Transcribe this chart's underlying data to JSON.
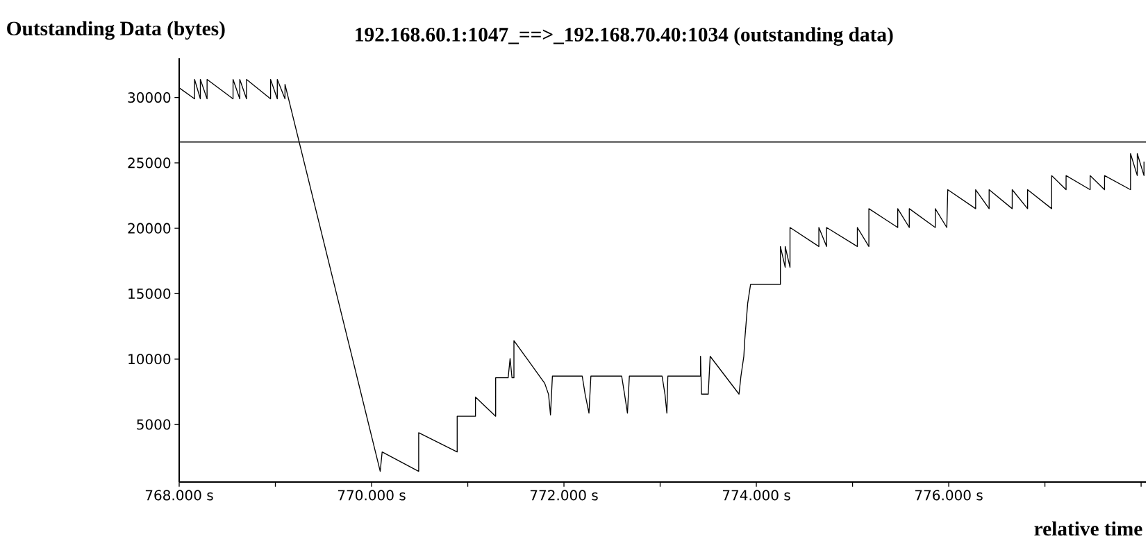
{
  "chart_data": {
    "type": "line",
    "title": "192.168.60.1:1047_==>_192.168.70.40:1034 (outstanding data)",
    "ylabel": "Outstanding Data (bytes)",
    "xlabel": "relative time",
    "xlim": [
      768,
      778.05
    ],
    "ylim": [
      600,
      33000
    ],
    "xticks": [
      {
        "value": 768,
        "label": "768.000 s"
      },
      {
        "value": 769,
        "label": null
      },
      {
        "value": 770,
        "label": "770.000 s"
      },
      {
        "value": 771,
        "label": null
      },
      {
        "value": 772,
        "label": "772.000 s"
      },
      {
        "value": 773,
        "label": null
      },
      {
        "value": 774,
        "label": "774.000 s"
      },
      {
        "value": 775,
        "label": null
      },
      {
        "value": 776,
        "label": "776.000 s"
      },
      {
        "value": 777,
        "label": null
      },
      {
        "value": 778,
        "label": null
      }
    ],
    "yticks": [
      5000,
      10000,
      15000,
      20000,
      25000,
      30000
    ],
    "ref_lines": [
      {
        "axis": "y",
        "value": 26600,
        "color": "#000000"
      }
    ],
    "series": [
      {
        "color": "#000000",
        "x": [
          768.0,
          768.16,
          768.16,
          768.22,
          768.22,
          768.29,
          768.29,
          768.56,
          768.56,
          768.63,
          768.63,
          768.7,
          768.7,
          768.95,
          768.95,
          769.02,
          769.02,
          769.1,
          769.1,
          770.09,
          770.11,
          770.49,
          770.49,
          770.89,
          770.89,
          771.08,
          771.08,
          771.29,
          771.29,
          771.42,
          771.44,
          771.46,
          771.48,
          771.48,
          771.8,
          771.84,
          771.86,
          771.88,
          772.19,
          772.22,
          772.26,
          772.28,
          772.6,
          772.63,
          772.66,
          772.68,
          773.02,
          773.05,
          773.07,
          773.08,
          773.42,
          773.42,
          773.43,
          773.5,
          773.52,
          773.82,
          773.84,
          773.87,
          773.88,
          773.91,
          773.94,
          774.25,
          774.25,
          774.3,
          774.3,
          774.35,
          774.35,
          774.65,
          774.65,
          774.73,
          774.73,
          775.05,
          775.05,
          775.17,
          775.17,
          775.47,
          775.47,
          775.59,
          775.59,
          775.86,
          775.86,
          775.98,
          775.99,
          776.28,
          776.28,
          776.42,
          776.42,
          776.66,
          776.66,
          776.82,
          776.82,
          777.07,
          777.07,
          777.22,
          777.22,
          777.47,
          777.47,
          777.62,
          777.62,
          777.89,
          777.89,
          777.96,
          777.96,
          778.03,
          778.03
        ],
        "values": [
          30740,
          29900,
          31380,
          29900,
          31380,
          29900,
          31380,
          29900,
          31380,
          29900,
          31380,
          29900,
          31380,
          29900,
          31380,
          29900,
          31380,
          29900,
          31000,
          1420,
          2900,
          1420,
          4370,
          2900,
          5630,
          5630,
          7100,
          5630,
          8570,
          8570,
          10040,
          8570,
          8570,
          11410,
          8150,
          7300,
          5730,
          8700,
          8700,
          7320,
          5870,
          8700,
          8700,
          7320,
          5870,
          8700,
          8700,
          7320,
          5870,
          8700,
          8700,
          10210,
          7320,
          7320,
          10210,
          7320,
          8700,
          10210,
          11510,
          14260,
          15710,
          15710,
          18610,
          17020,
          18610,
          17020,
          20060,
          18610,
          20060,
          18610,
          20060,
          18610,
          20060,
          18610,
          21500,
          20060,
          21500,
          20060,
          21500,
          20060,
          21500,
          20060,
          22950,
          21500,
          22950,
          21500,
          22950,
          21500,
          22950,
          21500,
          22950,
          21500,
          24030,
          22950,
          24030,
          22950,
          24030,
          22950,
          24030,
          22950,
          25710,
          24030,
          25710,
          24030,
          25100
        ]
      }
    ]
  }
}
